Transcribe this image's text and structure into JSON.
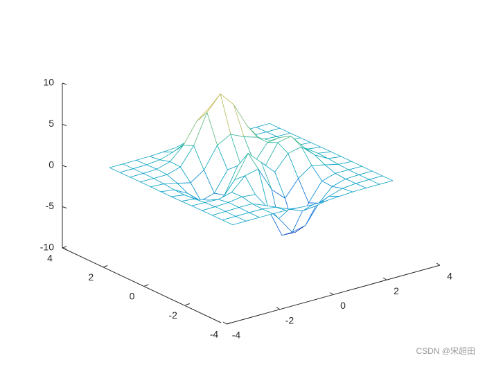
{
  "chart_data": {
    "type": "mesh",
    "x": [
      -3,
      -2.5,
      -2,
      -1.5,
      -1,
      -0.5,
      0,
      0.5,
      1,
      1.5,
      2,
      2.5,
      3
    ],
    "y": [
      -3,
      -2.5,
      -2,
      -1.5,
      -1,
      -0.5,
      0,
      0.5,
      1,
      1.5,
      2,
      2.5,
      3
    ],
    "z": [
      [
        0,
        0,
        0,
        0,
        -0.03,
        -0.14,
        -0.24,
        -0.22,
        -0.11,
        -0.03,
        0,
        0,
        0
      ],
      [
        0,
        0,
        0.01,
        0,
        -0.23,
        -0.91,
        -1.57,
        -1.41,
        -0.69,
        -0.18,
        -0.03,
        0,
        0
      ],
      [
        0,
        0.01,
        0.05,
        0.05,
        -0.59,
        -2.63,
        -4.75,
        -4.34,
        -2.1,
        -0.53,
        -0.06,
        0,
        0
      ],
      [
        0,
        0.01,
        0.08,
        0.33,
        0.15,
        -2.19,
        -5.68,
        -5.76,
        -2.64,
        -0.44,
        0.04,
        0.03,
        0
      ],
      [
        -0.01,
        -0.06,
        -0.13,
        0.3,
        1.86,
        2.22,
        -0.72,
        -2.22,
        -0.27,
        0.88,
        0.5,
        0.11,
        0.01
      ],
      [
        -0.03,
        -0.2,
        -0.8,
        -1.21,
        0.8,
        3.55,
        2,
        0.39,
        2.2,
        2.56,
        1.12,
        0.24,
        0.03
      ],
      [
        -0.04,
        -0.3,
        -1.33,
        -2.77,
        -1.65,
        1.48,
        0.98,
        0.38,
        2.94,
        3.27,
        1.41,
        0.3,
        0.03
      ],
      [
        -0.03,
        -0.25,
        -1.12,
        -2.49,
        -2,
        0.39,
        0.46,
        0.37,
        2.38,
        2.56,
        1.09,
        0.23,
        0.03
      ],
      [
        -0.01,
        -0.11,
        -0.48,
        -0.86,
        0.23,
        2.79,
        3.69,
        2.93,
        2.43,
        1.58,
        0.58,
        0.11,
        0.01
      ],
      [
        0,
        -0.02,
        -0.01,
        0.48,
        2.61,
        6.2,
        8,
        6.25,
        3.25,
        1.18,
        0.29,
        0.05,
        0
      ],
      [
        0,
        0.01,
        0.08,
        0.55,
        2.09,
        4.55,
        5.85,
        4.56,
        2.21,
        0.68,
        0.13,
        0.02,
        0
      ],
      [
        0,
        0,
        0.03,
        0.19,
        0.69,
        1.47,
        1.88,
        1.47,
        0.7,
        0.2,
        0.04,
        0,
        0
      ],
      [
        0,
        0,
        0.01,
        0.03,
        0.11,
        0.23,
        0.3,
        0.23,
        0.11,
        0.03,
        0.01,
        0,
        0
      ]
    ],
    "xlim": [
      -4,
      4
    ],
    "ylim": [
      -4,
      4
    ],
    "zlim": [
      -10,
      10
    ],
    "xticks": [
      -4,
      -2,
      0,
      2,
      4
    ],
    "yticks": [
      -4,
      -2,
      0,
      2,
      4
    ],
    "zticks": [
      -10,
      -5,
      0,
      5,
      10
    ],
    "colormap": [
      "#352a87",
      "#0f5cdd",
      "#127dd8",
      "#079ccf",
      "#15b1b4",
      "#59bd8c",
      "#a5be6b",
      "#e1b952",
      "#f9fb0e"
    ],
    "watermark": "CSDN @宋超田"
  }
}
